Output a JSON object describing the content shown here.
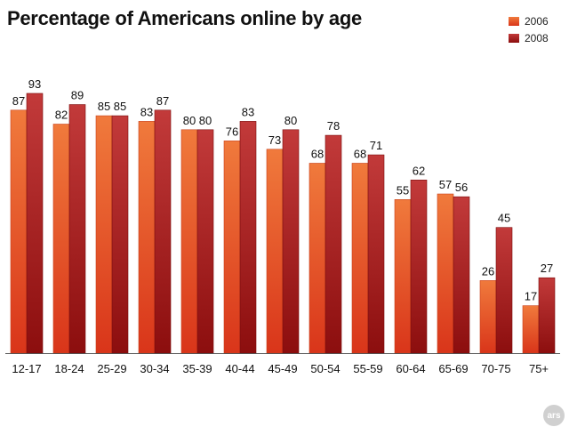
{
  "chart_data": {
    "type": "bar",
    "title": "Percentage of Americans online by age",
    "categories": [
      "12-17",
      "18-24",
      "25-29",
      "30-34",
      "35-39",
      "40-44",
      "45-49",
      "50-54",
      "55-59",
      "60-64",
      "65-69",
      "70-75",
      "75+"
    ],
    "series": [
      {
        "name": "2006",
        "values": [
          87,
          82,
          85,
          83,
          80,
          76,
          73,
          68,
          68,
          55,
          57,
          26,
          17
        ]
      },
      {
        "name": "2008",
        "values": [
          93,
          89,
          85,
          87,
          80,
          83,
          80,
          78,
          71,
          62,
          56,
          45,
          27
        ]
      }
    ],
    "ylim": [
      0,
      100
    ],
    "grid": false,
    "legend_position": "top-right",
    "xlabel": "",
    "ylabel": ""
  },
  "colors": {
    "2006_top": "#f07a3c",
    "2006_bottom": "#d9351a",
    "2008_top": "#c23a3a",
    "2008_bottom": "#8c0e0e"
  },
  "badge": {
    "label": "ars",
    "icon": "ars-logo-icon"
  }
}
